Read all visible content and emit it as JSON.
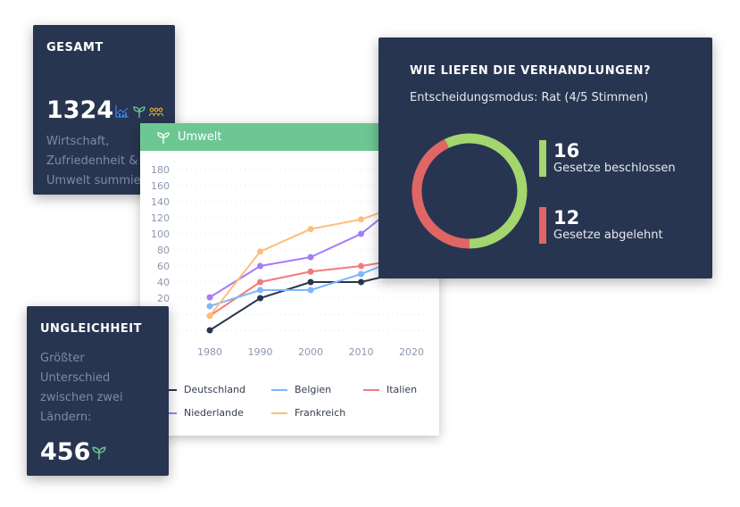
{
  "gesamt": {
    "title": "GESAMT",
    "value": "1324",
    "desc": [
      "Wirtschaft,",
      "Zufriedenheit &",
      "Umwelt summie"
    ],
    "icons": [
      "chart-icon",
      "sprout-icon",
      "people-icon"
    ]
  },
  "umwelt": {
    "title": "Umwelt",
    "icon": "sprout-icon"
  },
  "chart_data": {
    "type": "line",
    "title": "Umwelt",
    "x": [
      1980,
      1990,
      2000,
      2010,
      2020
    ],
    "xlabel": "",
    "ylabel": "",
    "ylim": [
      -20,
      180
    ],
    "yticks": [
      20,
      40,
      60,
      80,
      100,
      120,
      140,
      160,
      180
    ],
    "grid": true,
    "legend": "bottom",
    "series": [
      {
        "name": "Deutschland",
        "color": "#283550",
        "values": [
          -20,
          20,
          40,
          40,
          55
        ]
      },
      {
        "name": "Belgien",
        "color": "#7fb6f7",
        "values": [
          10,
          30,
          30,
          50,
          75
        ]
      },
      {
        "name": "Italien",
        "color": "#f47a7a",
        "values": [
          -2,
          40,
          53,
          60,
          70
        ]
      },
      {
        "name": "Niederlande",
        "color": "#a57cf4",
        "values": [
          21,
          60,
          71,
          100,
          150
        ]
      },
      {
        "name": "Frankreich",
        "color": "#fdbd7a",
        "values": [
          -2,
          78,
          106,
          118,
          140
        ]
      }
    ]
  },
  "verhandlungen": {
    "title": "WIE LIEFEN DIE VERHANDLUNGEN?",
    "subtitle": "Entscheidungsmodus: Rat (4/5 Stimmen)",
    "passed": {
      "value": "16",
      "label": "Gesetze beschlossen",
      "color": "#a3d66f"
    },
    "rejected": {
      "value": "12",
      "label": "Gesetze abgelehnt",
      "color": "#e06666"
    }
  },
  "ungleichheit": {
    "title": "UNGLEICHHEIT",
    "desc": [
      "Größter",
      "Unterschied",
      "zwischen zwei",
      "Ländern:"
    ],
    "value": "456",
    "icon": "sprout-icon"
  }
}
